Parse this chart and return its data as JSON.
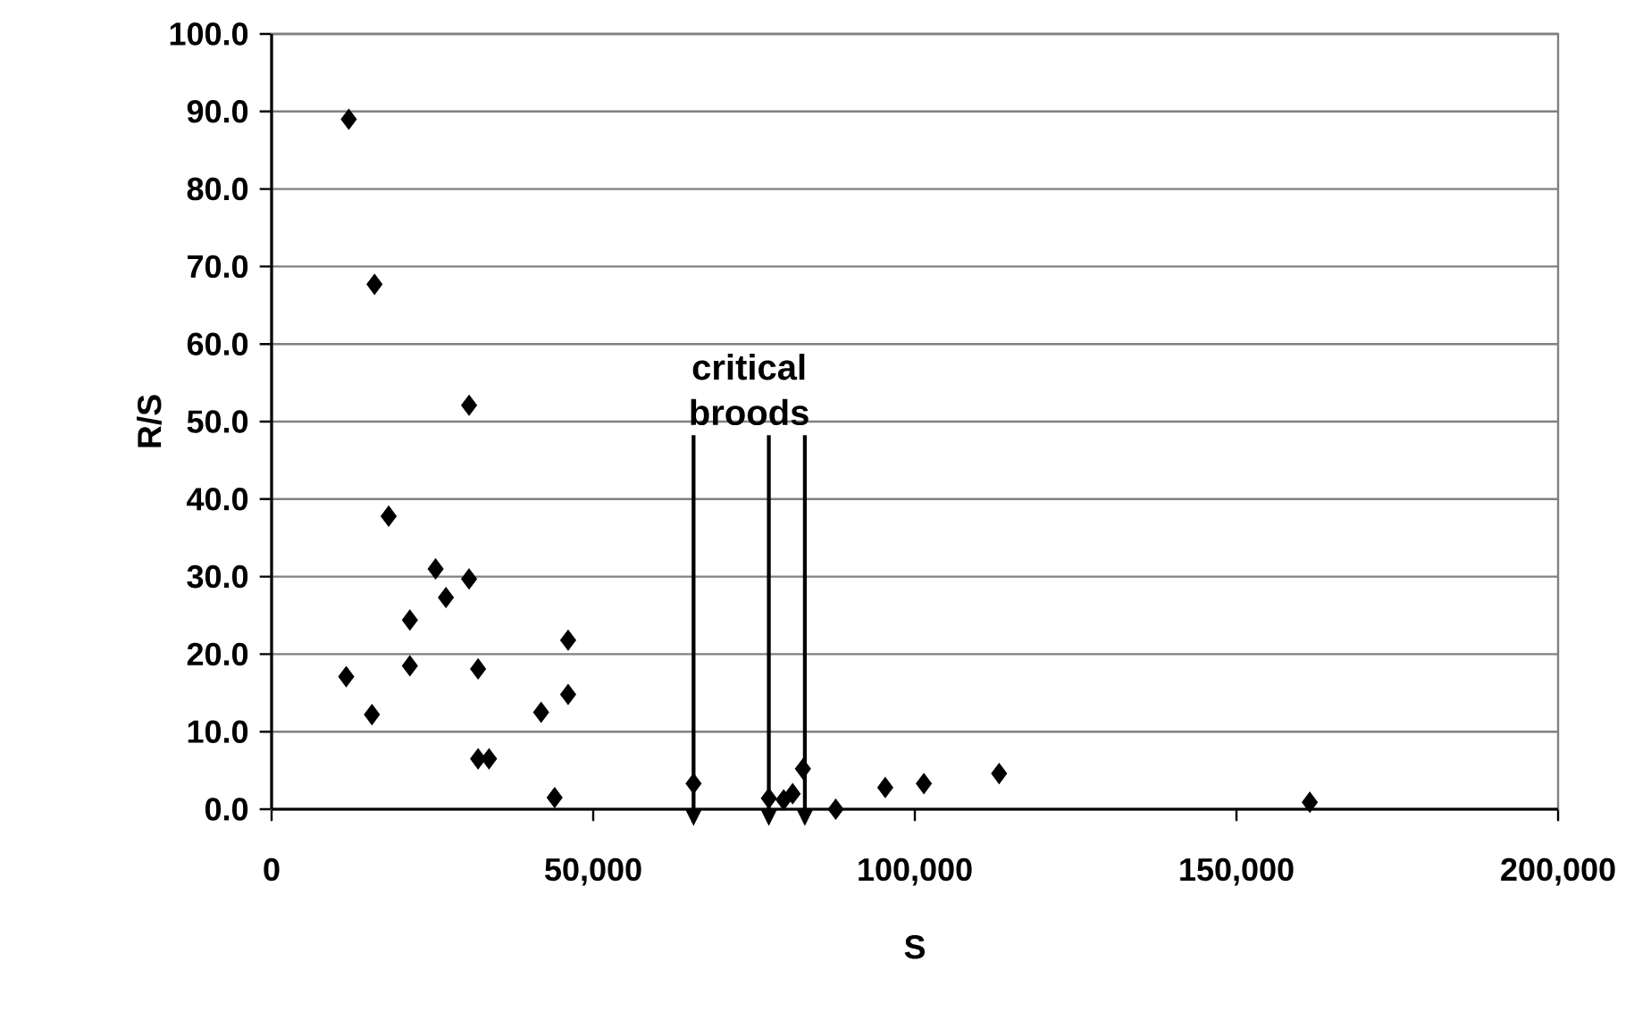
{
  "chart_data": {
    "type": "scatter",
    "xlabel": "S",
    "ylabel": "R/S",
    "x": [
      12000,
      16000,
      30700,
      18200,
      25500,
      30700,
      27100,
      21500,
      11600,
      21500,
      32100,
      15600,
      46100,
      46100,
      41900,
      32100,
      33800,
      44000,
      65600,
      77300,
      79600,
      81000,
      82600,
      87700,
      95400,
      101400,
      113100,
      161400
    ],
    "values": [
      89.0,
      67.7,
      52.1,
      37.8,
      31.0,
      29.7,
      27.3,
      24.4,
      17.1,
      18.5,
      18.1,
      12.2,
      21.8,
      14.8,
      12.5,
      6.5,
      6.5,
      1.5,
      3.3,
      1.4,
      1.2,
      2.0,
      5.2,
      0.0,
      2.8,
      3.3,
      4.6,
      0.9
    ],
    "color": "#000000",
    "marker": "diamond",
    "grid": "y",
    "xlim": [
      0,
      200000
    ],
    "ylim": [
      0,
      100
    ],
    "xticks": [
      0,
      {
        "value": 50000,
        "label": "50,000"
      },
      {
        "value": 100000,
        "label": "100,000"
      },
      {
        "value": 150000,
        "label": "150,000"
      },
      {
        "value": 200000,
        "label": "200,000"
      }
    ],
    "yticks": [
      {
        "value": 0,
        "label": "0.0"
      },
      {
        "value": 10,
        "label": "10.0"
      },
      {
        "value": 20,
        "label": "20.0"
      },
      {
        "value": 30,
        "label": "30.0"
      },
      {
        "value": 40,
        "label": "40.0"
      },
      {
        "value": 50,
        "label": "50.0"
      },
      {
        "value": 60,
        "label": "60.0"
      },
      {
        "value": 70,
        "label": "70.0"
      },
      {
        "value": 80,
        "label": "80.0"
      },
      {
        "value": 90,
        "label": "90.0"
      },
      {
        "value": 100,
        "label": "100.0"
      }
    ],
    "annotations": [
      "critical broods"
    ],
    "ref_lines": [
      {
        "axis": "x",
        "value": 65600,
        "label": null
      },
      {
        "axis": "x",
        "value": 77300,
        "label": null
      },
      {
        "axis": "x",
        "value": 82900,
        "label": null
      }
    ]
  }
}
